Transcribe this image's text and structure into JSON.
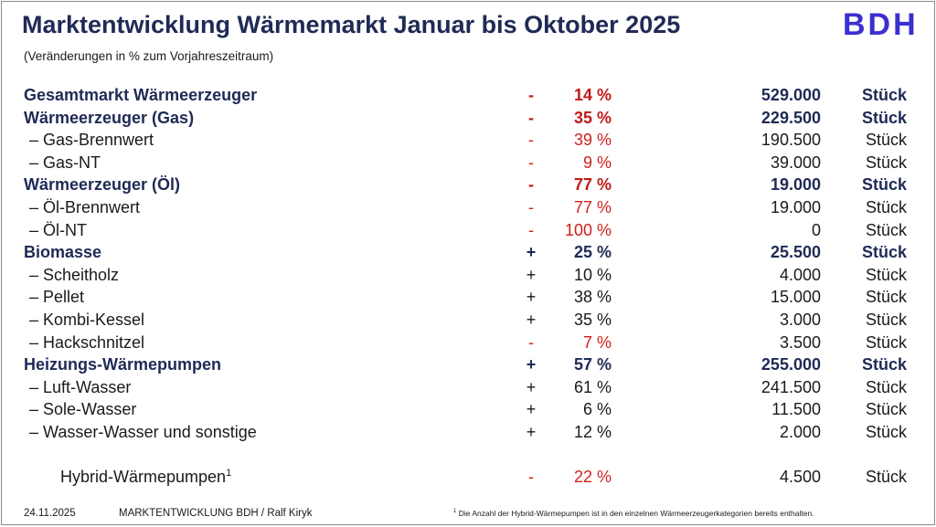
{
  "header": {
    "title": "Marktentwicklung Wärmemarkt Januar bis Oktober 2025",
    "subtitle": "(Veränderungen in % zum Vorjahreszeitraum)",
    "logo": "BDH"
  },
  "rows": [
    {
      "label": "Gesamtmarkt Wärmeerzeuger",
      "sign": "-",
      "pct": "14 %",
      "value": "529.000",
      "unit": "Stück"
    },
    {
      "label": "Wärmeerzeuger (Gas)",
      "sign": "-",
      "pct": "35 %",
      "value": "229.500",
      "unit": "Stück"
    },
    {
      "label": "–   Gas-Brennwert",
      "sign": "-",
      "pct": "39 %",
      "value": "190.500",
      "unit": "Stück"
    },
    {
      "label": "–   Gas-NT",
      "sign": "-",
      "pct": "9 %",
      "value": "39.000",
      "unit": "Stück"
    },
    {
      "label": "Wärmeerzeuger (Öl)",
      "sign": "-",
      "pct": "77 %",
      "value": "19.000",
      "unit": "Stück"
    },
    {
      "label": "–   Öl-Brennwert",
      "sign": "-",
      "pct": "77 %",
      "value": "19.000",
      "unit": "Stück"
    },
    {
      "label": "–   Öl-NT",
      "sign": "-",
      "pct": "100 %",
      "value": "0",
      "unit": "Stück"
    },
    {
      "label": "Biomasse",
      "sign": "+",
      "pct": "25 %",
      "value": "25.500",
      "unit": "Stück"
    },
    {
      "label": "–   Scheitholz",
      "sign": "+",
      "pct": "10 %",
      "value": "4.000",
      "unit": "Stück"
    },
    {
      "label": "–   Pellet",
      "sign": "+",
      "pct": "38 %",
      "value": "15.000",
      "unit": "Stück"
    },
    {
      "label": "–   Kombi-Kessel",
      "sign": "+",
      "pct": "35 %",
      "value": "3.000",
      "unit": "Stück"
    },
    {
      "label": "–   Hackschnitzel",
      "sign": "-",
      "pct": "7 %",
      "value": "3.500",
      "unit": "Stück"
    },
    {
      "label": "Heizungs-Wärmepumpen",
      "sign": "+",
      "pct": "57 %",
      "value": "255.000",
      "unit": "Stück"
    },
    {
      "label": "–   Luft-Wasser",
      "sign": "+",
      "pct": "61 %",
      "value": "241.500",
      "unit": "Stück"
    },
    {
      "label": "–   Sole-Wasser",
      "sign": "+",
      "pct": "6 %",
      "value": "11.500",
      "unit": "Stück"
    },
    {
      "label": "–   Wasser-Wasser und sonstige",
      "sign": "+",
      "pct": "12 %",
      "value": "2.000",
      "unit": "Stück"
    }
  ],
  "hybrid": {
    "label": "Hybrid-Wärmepumpen",
    "sup": "1",
    "sign": "-",
    "pct": "22 %",
    "value": "4.500",
    "unit": "Stück"
  },
  "footer": {
    "date": "24.11.2025",
    "credit": "MARKTENTWICKLUNG BDH / Ralf Kiryk",
    "footnote_sup": "1",
    "footnote": " Die Anzahl der Hybrid-Wärmepumpen ist in den einzelnen Wärmeerzeugerkategorien bereits enthalten."
  },
  "colors": {
    "title": "#1f2a55",
    "negative": "#d0201c",
    "logo": "#3a2fd0"
  }
}
